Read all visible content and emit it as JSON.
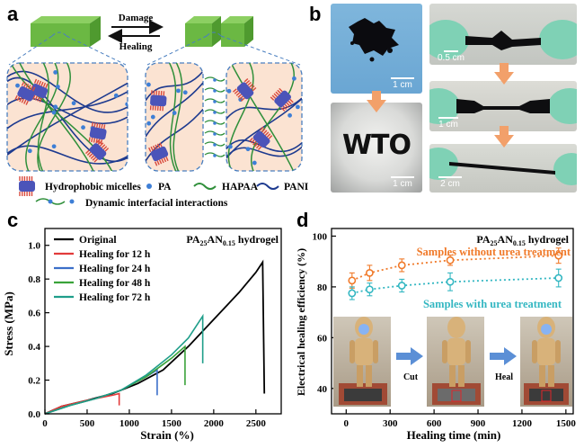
{
  "panels": {
    "a": "a",
    "b": "b",
    "c": "c",
    "d": "d"
  },
  "schematic": {
    "damage_label": "Damage",
    "healing_label": "Healing",
    "legend": {
      "micelles": "Hydrophobic micelles",
      "pa": "PA",
      "hapaa": "HAPAA",
      "pani": "PANI",
      "interactions": "Dynamic interfacial interactions"
    },
    "colors": {
      "block": "#6bb843",
      "panel_fill": "#fbe3d2",
      "panel_border": "#4a7fc0",
      "pani": "#1d3a8f",
      "hapaa": "#2f8f3a",
      "pa": "#3e7fd6",
      "micelle_core": "#4b54b9",
      "micelle_tail": "#d94a3c"
    }
  },
  "photos": {
    "scale_1": "1 cm",
    "scale_2": "1 cm",
    "scale_3": "0.5 cm",
    "scale_4": "1 cm",
    "scale_5": "2 cm",
    "letters": "WTO"
  },
  "chart_data": [
    {
      "type": "line",
      "panel": "c",
      "title_parts": [
        "PA",
        "25",
        "AN",
        "0.15",
        " hydrogel"
      ],
      "xlabel": "Strain (%)",
      "ylabel": "Stress (MPa)",
      "xlim": [
        0,
        2800
      ],
      "ylim": [
        0,
        1.1
      ],
      "xticks": [
        0,
        500,
        1000,
        1500,
        2000,
        2500
      ],
      "yticks": [
        0.0,
        0.2,
        0.4,
        0.6,
        0.8,
        1.0
      ],
      "ytick_labels": [
        "0.0",
        "0.2",
        "0.4",
        "0.6",
        "0.8",
        "1.0"
      ],
      "legend_placement": "top-left",
      "series": [
        {
          "name": "Original",
          "color": "#000000",
          "x": [
            0,
            200,
            500,
            800,
            1100,
            1400,
            1700,
            2000,
            2300,
            2500,
            2580,
            2600
          ],
          "y": [
            0,
            0.045,
            0.08,
            0.12,
            0.18,
            0.26,
            0.4,
            0.56,
            0.72,
            0.84,
            0.9,
            0.12
          ]
        },
        {
          "name": "Healing for 12 h",
          "color": "#e23b3b",
          "x": [
            0,
            200,
            500,
            800,
            880,
            880
          ],
          "y": [
            0,
            0.045,
            0.08,
            0.11,
            0.12,
            0.05
          ]
        },
        {
          "name": "Healing for 24 h",
          "color": "#3b6fc9",
          "x": [
            0,
            300,
            600,
            900,
            1200,
            1330,
            1330
          ],
          "y": [
            0,
            0.05,
            0.09,
            0.14,
            0.22,
            0.26,
            0.11
          ]
        },
        {
          "name": "Healing for 48 h",
          "color": "#3aa33a",
          "x": [
            0,
            300,
            600,
            900,
            1200,
            1500,
            1660,
            1660
          ],
          "y": [
            0,
            0.05,
            0.09,
            0.14,
            0.22,
            0.33,
            0.4,
            0.17
          ]
        },
        {
          "name": "Healing for 72 h",
          "color": "#1f9e8a",
          "x": [
            0,
            300,
            600,
            900,
            1200,
            1500,
            1700,
            1870,
            1870
          ],
          "y": [
            0,
            0.05,
            0.09,
            0.14,
            0.23,
            0.35,
            0.45,
            0.58,
            0.3
          ]
        }
      ]
    },
    {
      "type": "scatter",
      "panel": "d",
      "title_parts": [
        "PA",
        "25",
        "AN",
        "0.15",
        " hydrogel"
      ],
      "xlabel": "Healing time (min)",
      "ylabel": "Electrical healing efficiency (%)",
      "xlim": [
        -100,
        1550
      ],
      "ylim": [
        30,
        103
      ],
      "xticks": [
        0,
        300,
        600,
        900,
        1200,
        1500
      ],
      "yticks": [
        40,
        60,
        80,
        100
      ],
      "series": [
        {
          "name": "Samples without urea treatment",
          "color": "#f07a2a",
          "x": [
            40,
            160,
            380,
            710,
            1450
          ],
          "y": [
            82.5,
            85.5,
            88.5,
            90.5,
            92.3
          ],
          "err": [
            3.0,
            3.0,
            2.5,
            2.0,
            3.0
          ]
        },
        {
          "name": "Samples with urea treatment",
          "color": "#34b7c2",
          "x": [
            40,
            160,
            380,
            710,
            1450
          ],
          "y": [
            77.5,
            79.0,
            80.5,
            82.0,
            83.5
          ],
          "err": [
            2.5,
            2.5,
            2.5,
            3.5,
            3.5
          ]
        }
      ],
      "inset_labels": {
        "cut": "Cut",
        "heal": "Heal"
      }
    }
  ]
}
